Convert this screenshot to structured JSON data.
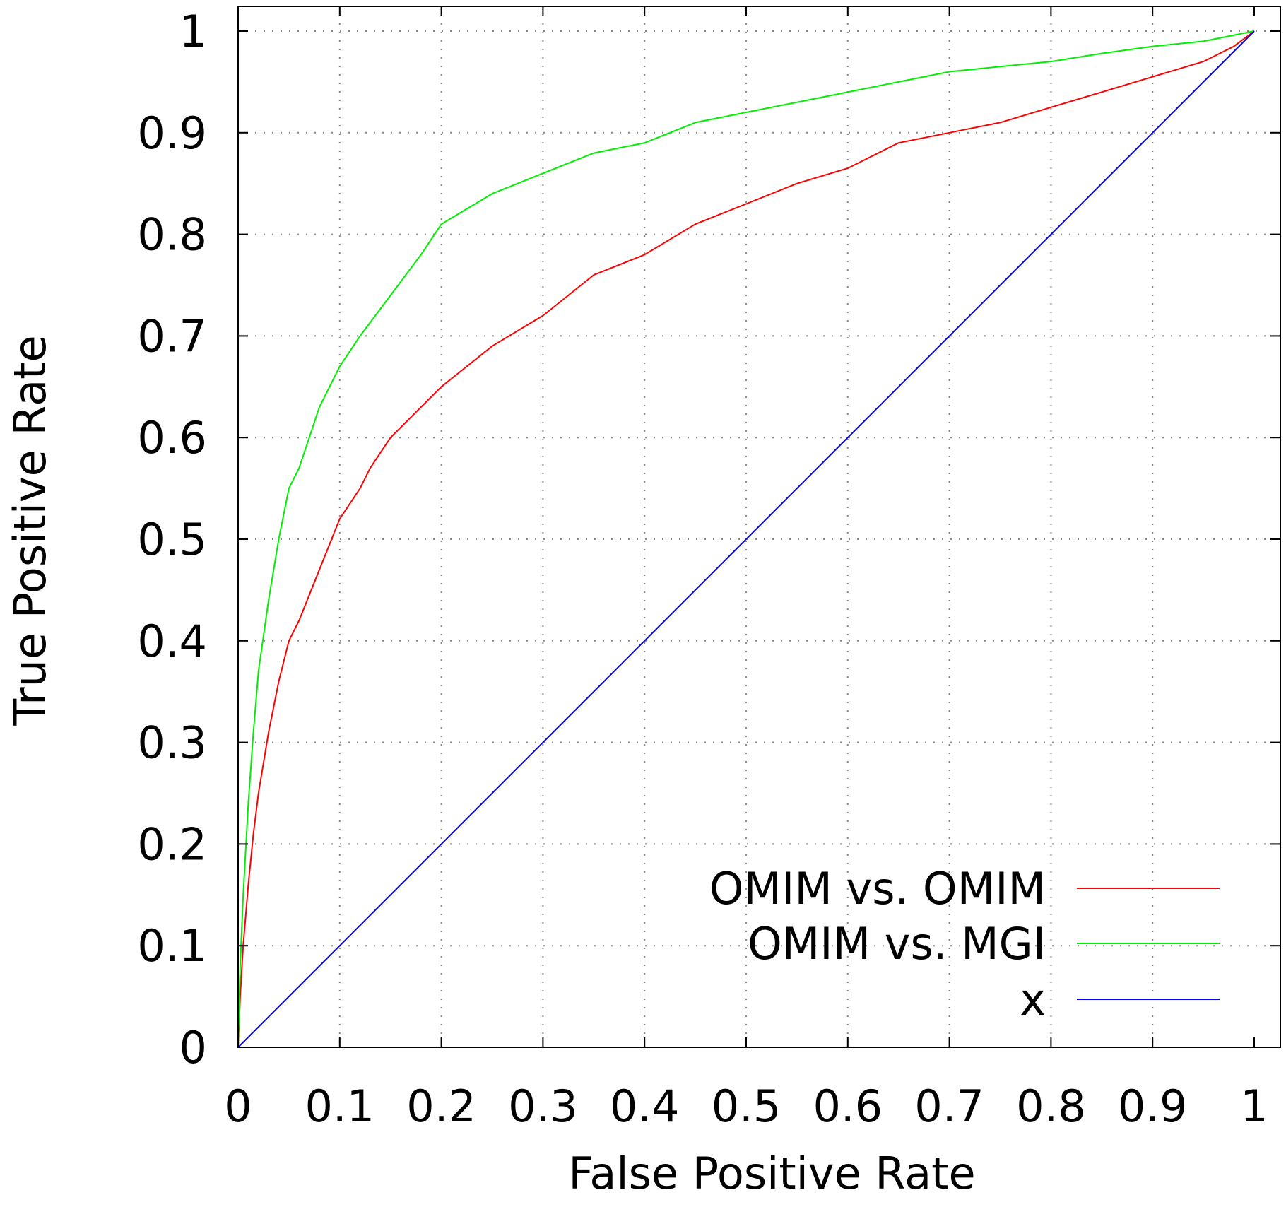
{
  "chart_data": {
    "type": "line",
    "xlabel": "False Positive Rate",
    "ylabel": "True Positive Rate",
    "xlim": [
      0,
      1
    ],
    "ylim": [
      0,
      1
    ],
    "grid": true,
    "legend_position": "bottom-right",
    "x_ticks": [
      "0",
      "0.1",
      "0.2",
      "0.3",
      "0.4",
      "0.5",
      "0.6",
      "0.7",
      "0.8",
      "0.9",
      "1"
    ],
    "y_ticks": [
      "0",
      "0.1",
      "0.2",
      "0.3",
      "0.4",
      "0.5",
      "0.6",
      "0.7",
      "0.8",
      "0.9",
      "1"
    ],
    "series": [
      {
        "name": "OMIM vs. OMIM",
        "color": "#ff0000",
        "x": [
          0,
          0.002,
          0.005,
          0.01,
          0.015,
          0.02,
          0.03,
          0.04,
          0.05,
          0.06,
          0.08,
          0.1,
          0.12,
          0.13,
          0.15,
          0.18,
          0.2,
          0.25,
          0.3,
          0.35,
          0.4,
          0.45,
          0.5,
          0.55,
          0.6,
          0.65,
          0.7,
          0.75,
          0.8,
          0.85,
          0.9,
          0.95,
          0.98,
          1.0
        ],
        "y": [
          0,
          0.05,
          0.1,
          0.16,
          0.21,
          0.25,
          0.31,
          0.36,
          0.4,
          0.42,
          0.47,
          0.52,
          0.55,
          0.57,
          0.6,
          0.63,
          0.65,
          0.69,
          0.72,
          0.76,
          0.78,
          0.81,
          0.83,
          0.85,
          0.865,
          0.89,
          0.9,
          0.91,
          0.925,
          0.94,
          0.955,
          0.97,
          0.985,
          1.0
        ]
      },
      {
        "name": "OMIM vs. MGI",
        "color": "#00ee00",
        "x": [
          0,
          0.002,
          0.005,
          0.01,
          0.015,
          0.02,
          0.03,
          0.04,
          0.05,
          0.06,
          0.07,
          0.08,
          0.1,
          0.12,
          0.15,
          0.18,
          0.2,
          0.25,
          0.3,
          0.35,
          0.4,
          0.45,
          0.5,
          0.55,
          0.6,
          0.65,
          0.7,
          0.75,
          0.8,
          0.85,
          0.9,
          0.95,
          1.0
        ],
        "y": [
          0,
          0.08,
          0.15,
          0.24,
          0.31,
          0.37,
          0.44,
          0.5,
          0.55,
          0.57,
          0.6,
          0.63,
          0.67,
          0.7,
          0.74,
          0.78,
          0.81,
          0.84,
          0.86,
          0.88,
          0.89,
          0.91,
          0.92,
          0.93,
          0.94,
          0.95,
          0.96,
          0.965,
          0.97,
          0.978,
          0.985,
          0.99,
          1.0
        ]
      },
      {
        "name": "x",
        "color": "#0000ff",
        "x": [
          0,
          1
        ],
        "y": [
          0,
          1
        ]
      }
    ]
  }
}
